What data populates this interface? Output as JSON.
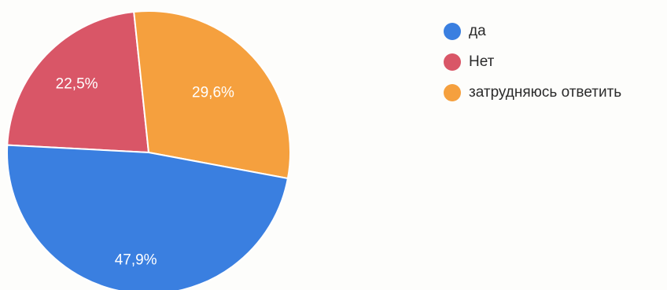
{
  "chart_data": {
    "type": "pie",
    "title": "",
    "slices": [
      {
        "label": "да",
        "value": 47.9,
        "value_label": "47,9%",
        "color": "#3a7fe0"
      },
      {
        "label": "Нет",
        "value": 22.5,
        "value_label": "22,5%",
        "color": "#d95667"
      },
      {
        "label": "затрудняюсь ответить",
        "value": 29.6,
        "value_label": "29,6%",
        "color": "#f5a03e"
      }
    ],
    "start_angle_deg": -87,
    "direction": "clockwise",
    "legend_position": "right"
  }
}
